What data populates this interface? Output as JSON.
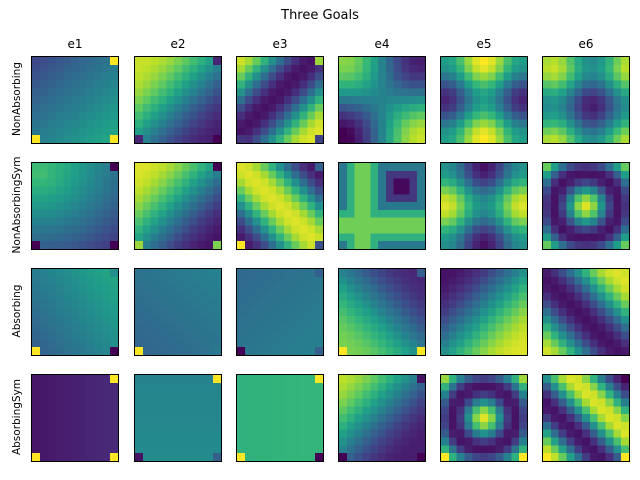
{
  "chart_data": {
    "type": "heatmap",
    "title": "Three Goals",
    "columns": [
      "e1",
      "e2",
      "e3",
      "e4",
      "e5",
      "e6"
    ],
    "rows": [
      "NonAbsorbing",
      "NonAbsorbingSym",
      "Absorbing",
      "AbsorbingSym"
    ],
    "grid_size": 11,
    "colormap": "viridis",
    "axis_ticks": false,
    "value_range": [
      0,
      1
    ],
    "goal_cells": [
      "top-right",
      "bottom-left",
      "bottom-right"
    ],
    "colors": {
      "viridis": [
        "#440154",
        "#482878",
        "#3e4989",
        "#31688e",
        "#26828e",
        "#1f9e89",
        "#35b779",
        "#6ece58",
        "#b5de2b",
        "#fde725"
      ],
      "frame": "#000000"
    }
  }
}
